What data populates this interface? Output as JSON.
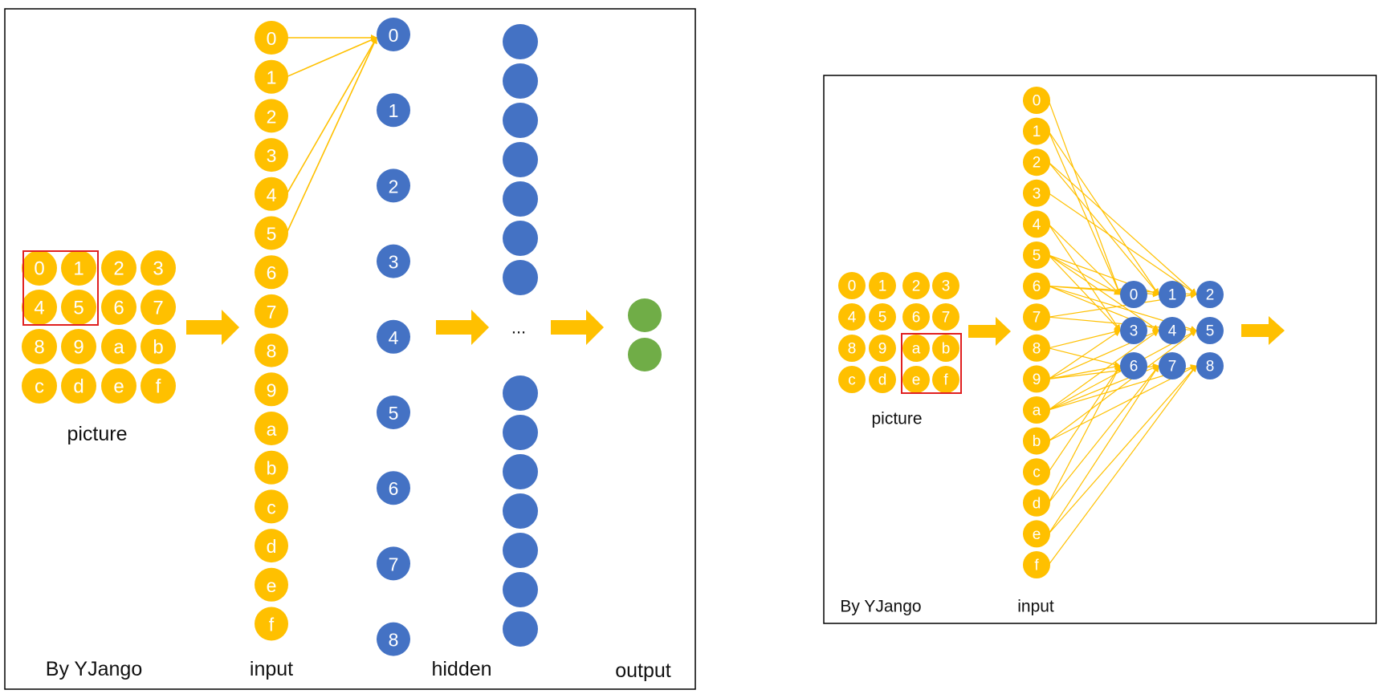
{
  "colors": {
    "input": "#FFC000",
    "hidden": "#4472C4",
    "output": "#70AD47",
    "edge": "#FFC000",
    "highlight": "#E02020",
    "frame": "#000000"
  },
  "left_panel": {
    "picture_caption": "picture",
    "author": "By YJango",
    "input_label": "input",
    "hidden_label": "hidden",
    "output_label": "output",
    "ellipsis": "...",
    "picture_grid": [
      [
        "0",
        "1",
        "2",
        "3"
      ],
      [
        "4",
        "5",
        "6",
        "7"
      ],
      [
        "8",
        "9",
        "a",
        "b"
      ],
      [
        "c",
        "d",
        "e",
        "f"
      ]
    ],
    "picture_highlight": [
      "0",
      "1",
      "4",
      "5"
    ],
    "input_nodes": [
      "0",
      "1",
      "2",
      "3",
      "4",
      "5",
      "6",
      "7",
      "8",
      "9",
      "a",
      "b",
      "c",
      "d",
      "e",
      "f"
    ],
    "hidden_nodes": [
      "0",
      "1",
      "2",
      "3",
      "4",
      "5",
      "6",
      "7",
      "8"
    ],
    "hidden_layer2_top_count": 7,
    "hidden_layer2_bottom_count": 7,
    "output_count": 2,
    "connections": [
      {
        "from": "0",
        "to": "0"
      },
      {
        "from": "1",
        "to": "0"
      },
      {
        "from": "4",
        "to": "0"
      },
      {
        "from": "5",
        "to": "0"
      }
    ]
  },
  "right_panel": {
    "picture_caption": "picture",
    "author": "By YJango",
    "input_label": "input",
    "picture_grid": [
      [
        "0",
        "1",
        "2",
        "3"
      ],
      [
        "4",
        "5",
        "6",
        "7"
      ],
      [
        "8",
        "9",
        "a",
        "b"
      ],
      [
        "c",
        "d",
        "e",
        "f"
      ]
    ],
    "picture_highlight": [
      "a",
      "b",
      "e",
      "f"
    ],
    "input_nodes": [
      "0",
      "1",
      "2",
      "3",
      "4",
      "5",
      "6",
      "7",
      "8",
      "9",
      "a",
      "b",
      "c",
      "d",
      "e",
      "f"
    ],
    "hidden_grid": [
      [
        "0",
        "1",
        "2"
      ],
      [
        "3",
        "4",
        "5"
      ],
      [
        "6",
        "7",
        "8"
      ]
    ],
    "receptive_fields": {
      "0": [
        "0",
        "1",
        "4",
        "5"
      ],
      "1": [
        "1",
        "2",
        "5",
        "6"
      ],
      "2": [
        "2",
        "3",
        "6",
        "7"
      ],
      "3": [
        "4",
        "5",
        "8",
        "9"
      ],
      "4": [
        "5",
        "6",
        "9",
        "a"
      ],
      "5": [
        "6",
        "7",
        "a",
        "b"
      ],
      "6": [
        "8",
        "9",
        "c",
        "d"
      ],
      "7": [
        "9",
        "a",
        "d",
        "e"
      ],
      "8": [
        "a",
        "b",
        "e",
        "f"
      ]
    }
  }
}
